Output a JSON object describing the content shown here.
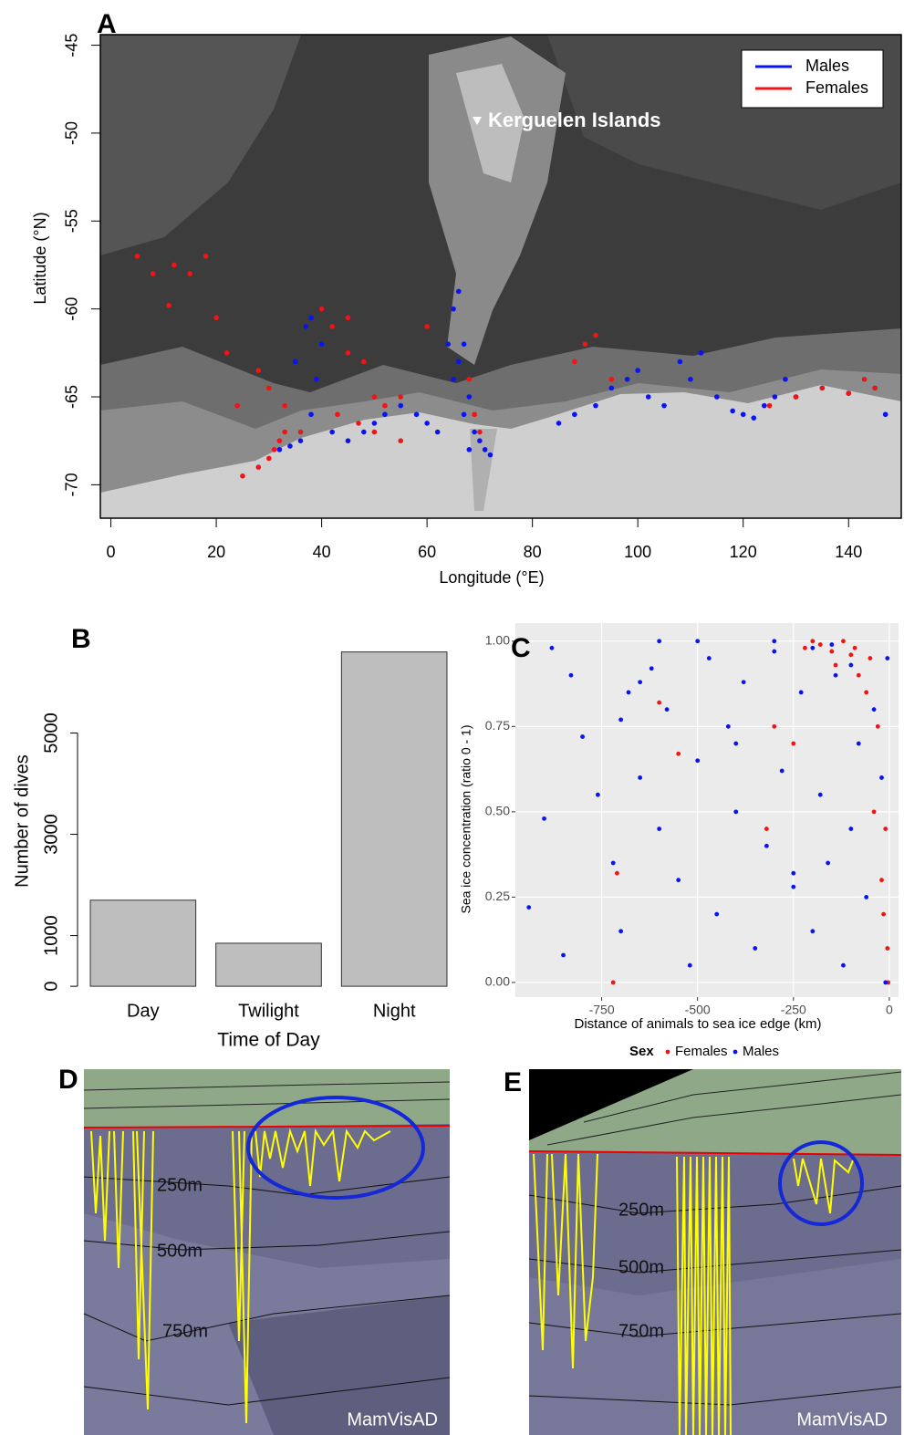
{
  "chart_data": [
    {
      "type": "map",
      "panel": "A",
      "xlabel": "Longitude (°E)",
      "ylabel": "Latitude (°N)",
      "annotation": "Kerguelen Islands",
      "xlim": [
        -2,
        150
      ],
      "ylim": [
        -71.9,
        -44.4
      ],
      "xticks": [
        0,
        20,
        40,
        60,
        80,
        100,
        120,
        140
      ],
      "yticks": [
        -45,
        -50,
        -55,
        -60,
        -65,
        -70
      ],
      "legend": "top-right",
      "series": [
        {
          "name": "Males",
          "color": "#0a14f0",
          "x": [
            32,
            34,
            36,
            38,
            39,
            40,
            42,
            45,
            48,
            50,
            52,
            55,
            58,
            60,
            62,
            64,
            65,
            66,
            67,
            68,
            69,
            70,
            71,
            72,
            35,
            37,
            38,
            40,
            65,
            66,
            67,
            68,
            85,
            88,
            92,
            95,
            98,
            100,
            102,
            105,
            108,
            110,
            112,
            115,
            118,
            120,
            122,
            124,
            126,
            128,
            130,
            135,
            140,
            145,
            147
          ],
          "y": [
            -68,
            -67.8,
            -67.5,
            -66,
            -64,
            -62,
            -67,
            -67.5,
            -67,
            -66.5,
            -66,
            -65.5,
            -66,
            -66.5,
            -67,
            -62,
            -60,
            -59,
            -62,
            -65,
            -67,
            -67.5,
            -68,
            -68.3,
            -63,
            -61,
            -60.5,
            -60,
            -64,
            -63,
            -66,
            -68,
            -66.5,
            -66,
            -65.5,
            -64.5,
            -64,
            -63.5,
            -65,
            -65.5,
            -63,
            -64,
            -62.5,
            -65,
            -65.8,
            -66,
            -66.2,
            -65.5,
            -65,
            -64,
            -65,
            -64.5,
            -64.8,
            -64.5,
            -66
          ]
        },
        {
          "name": "Females",
          "color": "#f01414",
          "x": [
            5,
            8,
            11,
            12,
            15,
            18,
            20,
            22,
            25,
            28,
            30,
            31,
            32,
            33,
            28,
            30,
            33,
            36,
            42,
            45,
            48,
            50,
            52,
            55,
            43,
            47,
            50,
            55,
            45,
            60,
            68,
            69,
            70,
            88,
            90,
            92,
            95,
            125,
            130,
            135,
            140,
            143,
            145,
            24,
            40
          ],
          "y": [
            -57,
            -58,
            -59.8,
            -57.5,
            -58,
            -57,
            -60.5,
            -62.5,
            -69.5,
            -69,
            -68.5,
            -68,
            -67.5,
            -67,
            -63.5,
            -64.5,
            -65.5,
            -67,
            -61,
            -62.5,
            -63,
            -65,
            -65.5,
            -65,
            -66,
            -66.5,
            -67,
            -67.5,
            -60.5,
            -61,
            -64,
            -66,
            -67,
            -63,
            -62,
            -61.5,
            -64,
            -65.5,
            -65,
            -64.5,
            -64.8,
            -64,
            -64.5,
            -65.5,
            -60
          ]
        }
      ]
    },
    {
      "type": "bar",
      "panel": "B",
      "xlabel": "Time of Day",
      "ylabel": "Number of dives",
      "categories": [
        "Day",
        "Twilight",
        "Night"
      ],
      "values": [
        1700,
        850,
        6600
      ],
      "color": "#bebebe",
      "ylim": [
        -250,
        6900
      ],
      "yticks": [
        0,
        1000,
        3000,
        5000
      ]
    },
    {
      "type": "scatter",
      "panel": "C",
      "xlabel": "Distance of animals to sea ice edge (km)",
      "ylabel": "Sea ice concentration (ratio  0 - 1)",
      "xlim": [
        -975,
        24
      ],
      "ylim": [
        -0.043,
        1.053
      ],
      "xticks": [
        -750,
        -500,
        -250,
        0
      ],
      "yticks": [
        {
          "value": 0,
          "label": "0.00"
        },
        {
          "value": 0.25,
          "label": "0.25"
        },
        {
          "value": 0.5,
          "label": "0.50"
        },
        {
          "value": 0.75,
          "label": "0.75"
        },
        {
          "value": 1,
          "label": "1.00"
        }
      ],
      "grid": true,
      "legend_title": "Sex",
      "legend": "bottom",
      "series": [
        {
          "name": "Females",
          "color": "#f01414",
          "x": [
            -720,
            -710,
            -600,
            -550,
            -320,
            -300,
            -250,
            -220,
            -200,
            -180,
            -150,
            -120,
            -100,
            -80,
            -60,
            -40,
            -30,
            -20,
            -15,
            -10,
            -5,
            -3,
            -50,
            -90,
            -140
          ],
          "y": [
            0.0,
            0.32,
            0.82,
            0.67,
            0.45,
            0.75,
            0.7,
            0.98,
            1.0,
            0.99,
            0.97,
            1.0,
            0.96,
            0.9,
            0.85,
            0.5,
            0.75,
            0.3,
            0.2,
            0.45,
            0.1,
            0.0,
            0.95,
            0.98,
            0.93
          ]
        },
        {
          "name": "Males",
          "color": "#0a14f0",
          "x": [
            -940,
            -900,
            -880,
            -850,
            -830,
            -800,
            -760,
            -720,
            -700,
            -680,
            -650,
            -620,
            -600,
            -580,
            -550,
            -520,
            -500,
            -470,
            -450,
            -420,
            -400,
            -380,
            -350,
            -320,
            -300,
            -280,
            -250,
            -230,
            -200,
            -180,
            -160,
            -140,
            -120,
            -100,
            -80,
            -60,
            -40,
            -20,
            -10,
            -5,
            -600,
            -500,
            -300,
            -200,
            -150,
            -100,
            -700,
            -650,
            -400,
            -250
          ],
          "y": [
            0.22,
            0.48,
            0.98,
            0.08,
            0.9,
            0.72,
            0.55,
            0.35,
            0.15,
            0.85,
            0.6,
            0.92,
            0.45,
            0.8,
            0.3,
            0.05,
            0.65,
            0.95,
            0.2,
            0.75,
            0.5,
            0.88,
            0.1,
            0.4,
            0.97,
            0.62,
            0.28,
            0.85,
            0.15,
            0.55,
            0.35,
            0.9,
            0.05,
            0.45,
            0.7,
            0.25,
            0.8,
            0.6,
            0.0,
            0.95,
            1.0,
            1.0,
            1.0,
            0.98,
            0.99,
            0.93,
            0.77,
            0.88,
            0.7,
            0.32
          ]
        }
      ]
    }
  ],
  "renders": [
    {
      "panel": "D",
      "depth_labels": [
        "250m",
        "500m",
        "750m"
      ],
      "watermark": "MamVisAD"
    },
    {
      "panel": "E",
      "depth_labels": [
        "250m",
        "500m",
        "750m"
      ],
      "watermark": "MamVisAD"
    }
  ]
}
